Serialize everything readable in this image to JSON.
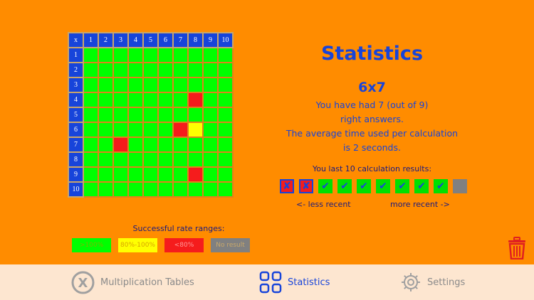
{
  "grid": {
    "corner": "x",
    "columns": [
      "1",
      "2",
      "3",
      "4",
      "5",
      "6",
      "7",
      "8",
      "9",
      "10"
    ],
    "rows": [
      "1",
      "2",
      "3",
      "4",
      "5",
      "6",
      "7",
      "8",
      "9",
      "10"
    ],
    "cells_not_green": [
      {
        "row": 4,
        "col": 8,
        "status": "red"
      },
      {
        "row": 6,
        "col": 7,
        "status": "red"
      },
      {
        "row": 6,
        "col": 8,
        "status": "yellow"
      },
      {
        "row": 7,
        "col": 3,
        "status": "red"
      },
      {
        "row": 9,
        "col": 8,
        "status": "red"
      }
    ],
    "default_status": "green"
  },
  "legend": {
    "title": "Successful rate ranges:",
    "items": [
      {
        "label": ">100%",
        "color": "#00FF00",
        "text_color": "#7ab800"
      },
      {
        "label": "80%-100%",
        "color": "#FFFF00",
        "text_color": "#d9a400"
      },
      {
        "label": "<80%",
        "color": "#F51C1C",
        "text_color": "#ff9a9a"
      },
      {
        "label": "No result",
        "color": "#808080",
        "text_color": "#c9a86a"
      }
    ]
  },
  "stats": {
    "title": "Statistics",
    "current": "6x7",
    "line1": "You have had 7 (out of 9)",
    "line2": "right answers.",
    "line3": "The average time used per calculation",
    "line4": "is 2 seconds.",
    "last_label": "You last 10 calculation results:",
    "results": [
      "fail",
      "fail",
      "ok",
      "ok",
      "ok",
      "ok",
      "ok",
      "ok",
      "ok",
      "none"
    ],
    "less_recent": "<- less recent",
    "more_recent": "more recent ->"
  },
  "tabs": [
    {
      "label": "Multiplication Tables",
      "icon": "x-circle-icon",
      "active": false
    },
    {
      "label": "Statistics",
      "icon": "grid-squares-icon",
      "active": true
    },
    {
      "label": "Settings",
      "icon": "gear-icon",
      "active": false
    }
  ],
  "colors": {
    "background": "#FF8C00",
    "header_blue": "#1744DA",
    "green": "#00FF00",
    "red": "#F51C1C",
    "yellow": "#FFFF00",
    "gray": "#808080",
    "tabbar": "#FDE6D0"
  }
}
